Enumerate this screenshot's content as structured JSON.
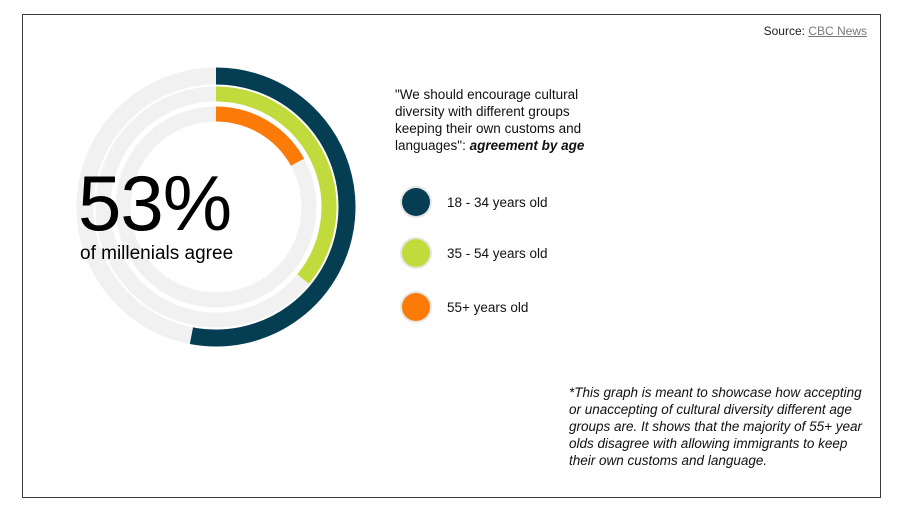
{
  "source": {
    "prefix": "Source: ",
    "link_text": "CBC News"
  },
  "headline": {
    "big_number": "53%",
    "subtitle": "of millenials agree"
  },
  "quote": {
    "text": "\"We should encourage cultural diversity with different groups keeping their own customs and languages\": ",
    "emphasis": "agreement by age"
  },
  "note": "*This graph is meant to showcase how accepting or unaccepting of cultural diversity different age groups are. It shows that the majority of 55+ year olds disagree with allowing immigrants to keep their own customs and language.",
  "chart_data": {
    "type": "radial-bar",
    "track_color": "#f1f1f1",
    "series": [
      {
        "name": "18 - 34 years old",
        "value": 53,
        "color": "#053d53"
      },
      {
        "name": "35 - 54 years old",
        "value": 36,
        "color": "#c1db3c"
      },
      {
        "name": "55+ years old",
        "value": 17,
        "color": "#fc7a08"
      }
    ]
  }
}
